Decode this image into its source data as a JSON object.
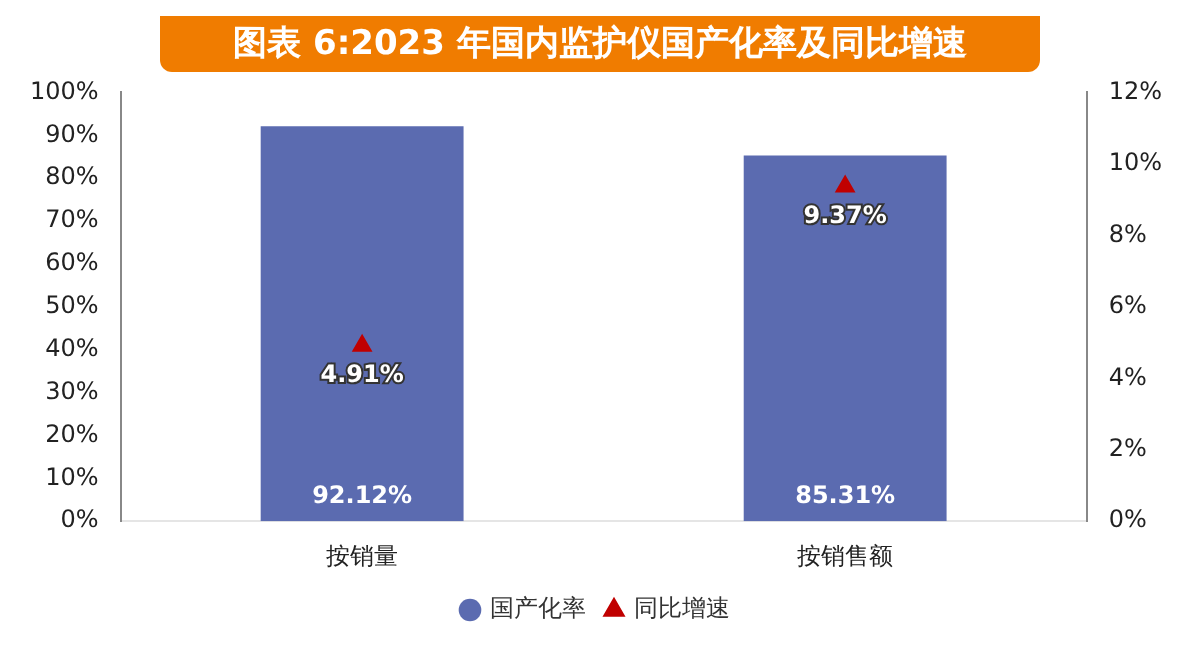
{
  "chart_data": {
    "type": "bar",
    "title": "图表 6:2023 年国内监护仪国产化率及同比增速",
    "categories": [
      "按销量",
      "按销售额"
    ],
    "series": [
      {
        "name": "国产化率",
        "color": "#5b6bb0",
        "values": [
          92.12,
          85.31
        ],
        "value_labels": [
          "92.12%",
          "85.31%"
        ]
      },
      {
        "name": "同比增速",
        "type": "scatter",
        "axis": "y2",
        "color": "#c00000",
        "x": [
          "按销量",
          "按销售额"
        ],
        "values": [
          4.91,
          9.37
        ],
        "value_labels": [
          "4.91%",
          "9.37%"
        ]
      }
    ],
    "ylim": [
      0,
      100
    ],
    "yticks": [
      {
        "value": 0,
        "label": "0%"
      },
      {
        "value": 10,
        "label": "10%"
      },
      {
        "value": 20,
        "label": "20%"
      },
      {
        "value": 30,
        "label": "30%"
      },
      {
        "value": 40,
        "label": "40%"
      },
      {
        "value": 50,
        "label": "50%"
      },
      {
        "value": 60,
        "label": "60%"
      },
      {
        "value": 70,
        "label": "70%"
      },
      {
        "value": 80,
        "label": "80%"
      },
      {
        "value": 90,
        "label": "90%"
      },
      {
        "value": 100,
        "label": "100%"
      }
    ],
    "y2lim": [
      0,
      12
    ],
    "y2ticks": [
      {
        "value": 0,
        "label": "0%"
      },
      {
        "value": 2,
        "label": "2%"
      },
      {
        "value": 4,
        "label": "4%"
      },
      {
        "value": 6,
        "label": "6%"
      },
      {
        "value": 8,
        "label": "8%"
      },
      {
        "value": 10,
        "label": "10%"
      },
      {
        "value": 12,
        "label": "12%"
      }
    ],
    "marker": "triangle",
    "grid": false,
    "legend": "bottom"
  }
}
